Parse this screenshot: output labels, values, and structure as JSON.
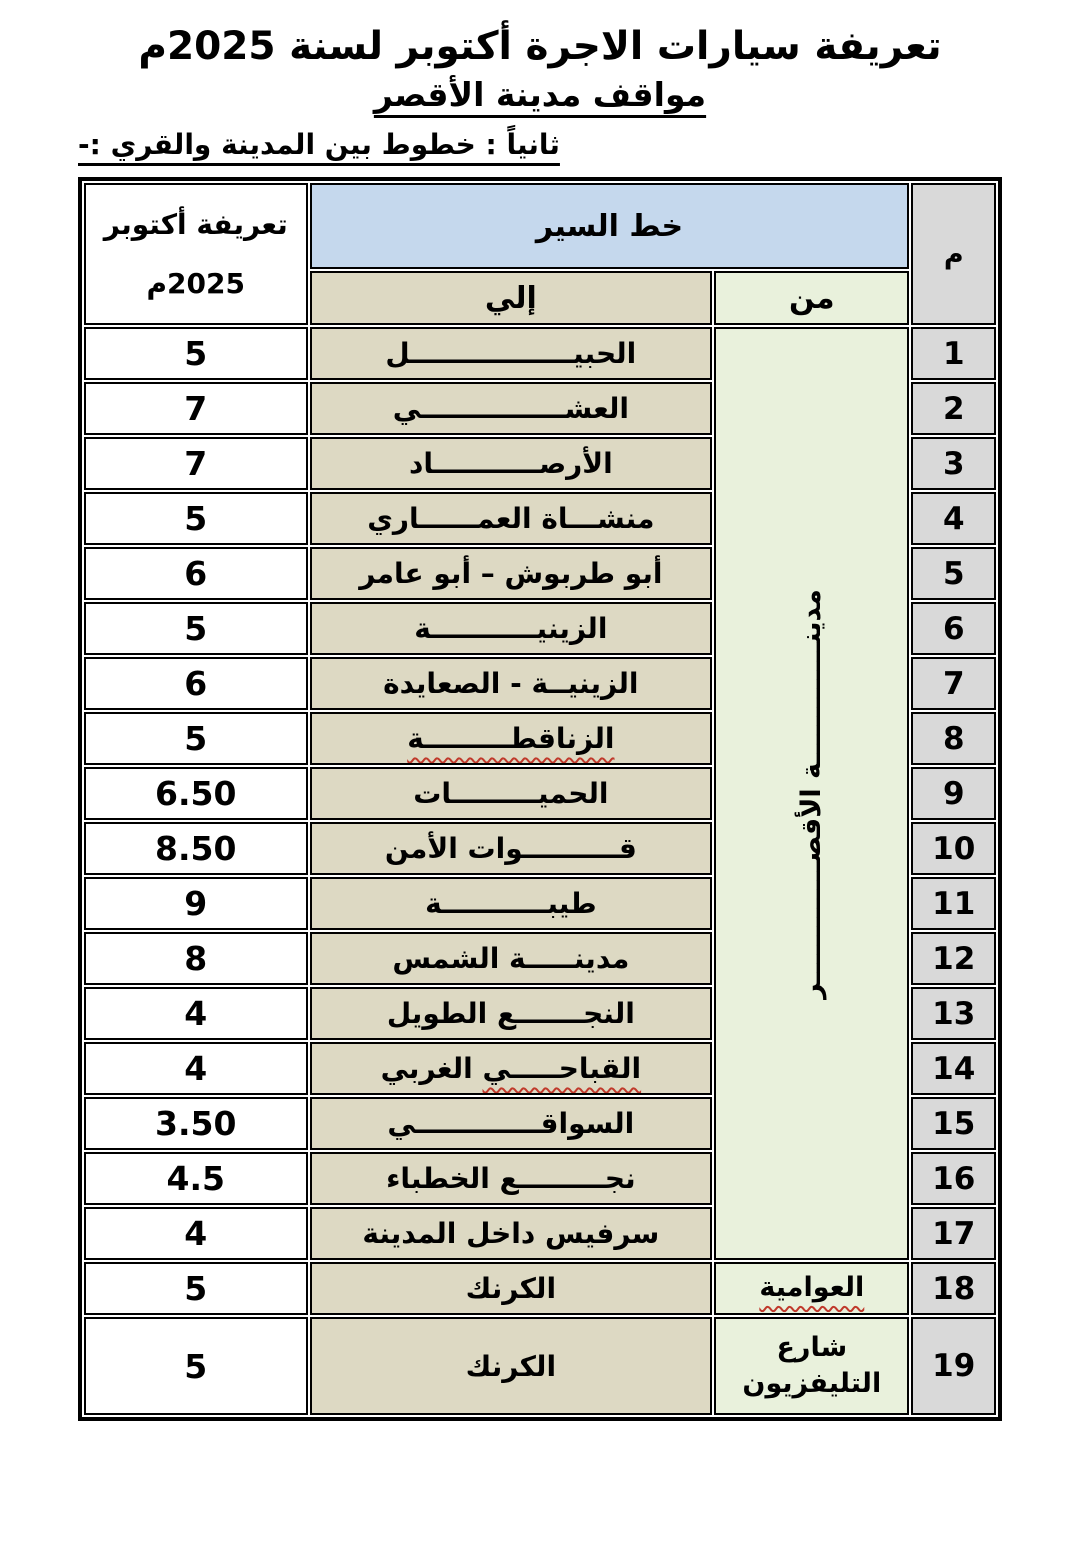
{
  "document": {
    "title": "تعريفة سيارات الاجرة أكتوبر لسنة 2025م",
    "subtitle": "مواقف مدينة الأقصر",
    "section_heading": "ثانياً : خطوط بين المدينة والقري :-"
  },
  "table": {
    "headers": {
      "serial": "م",
      "route": "خط السير",
      "to": "إلي",
      "from": "من",
      "fare_line1": "تعريفة أكتوبر",
      "fare_line2": "2025م"
    },
    "from_merged": {
      "label": "مدينـــــــــــــة الأقصـــــــــــــر",
      "rowspan": 17
    },
    "rows": [
      {
        "num": "1",
        "to": "الحبيـــــــــــــــــل",
        "fare": "5"
      },
      {
        "num": "2",
        "to": "العشـــــــــــــــي",
        "fare": "7"
      },
      {
        "num": "3",
        "to": "الأرصـــــــــــاد",
        "fare": "7"
      },
      {
        "num": "4",
        "to": "منشـــاة العمــــــاري",
        "fare": "5"
      },
      {
        "num": "5",
        "to": "أبو طربوش – أبو عامر",
        "fare": "6"
      },
      {
        "num": "6",
        "to": "الزينيـــــــــــة",
        "fare": "5"
      },
      {
        "num": "7",
        "to": "الزينيــة - الصعايدة",
        "fare": "6"
      },
      {
        "num": "8",
        "to": "الزناقطـــــــــة",
        "to_wavy": "الزناقطـــــــــة",
        "fare": "5"
      },
      {
        "num": "9",
        "to": "الحميـــــــــات",
        "fare": "6.50"
      },
      {
        "num": "10",
        "to": "قــــــــــوات الأمن",
        "fare": "8.50"
      },
      {
        "num": "11",
        "to": "طيبـــــــــــة",
        "fare": "9"
      },
      {
        "num": "12",
        "to": "مدينـــــة الشمس",
        "fare": "8"
      },
      {
        "num": "13",
        "to": "النجـــــــع الطويل",
        "fare": "4"
      },
      {
        "num": "14",
        "to": "القباحـــــي الغربي",
        "to_wavy": "القباحـــــي",
        "fare": "4"
      },
      {
        "num": "15",
        "to": "السواقـــــــــــــي",
        "fare": "3.50"
      },
      {
        "num": "16",
        "to": "نجـــــــــع الخطباء",
        "fare": "4.5"
      },
      {
        "num": "17",
        "to": "سرفيس داخل المدينة",
        "fare": "4"
      },
      {
        "num": "18",
        "to": "الكرنك",
        "from": "العوامية",
        "from_wavy": "العوامية",
        "fare": "5"
      },
      {
        "num": "19",
        "to": "الكرنك",
        "from": "شارع التليفزيون",
        "fare": "5",
        "tall": true
      }
    ]
  },
  "colors": {
    "route_header_bg": "#c5d8ed",
    "to_bg": "#ddd9c3",
    "from_bg": "#e9f1dc",
    "serial_bg": "#d9d9d9",
    "border": "#000000",
    "misspell_underline": "#c0392b"
  }
}
